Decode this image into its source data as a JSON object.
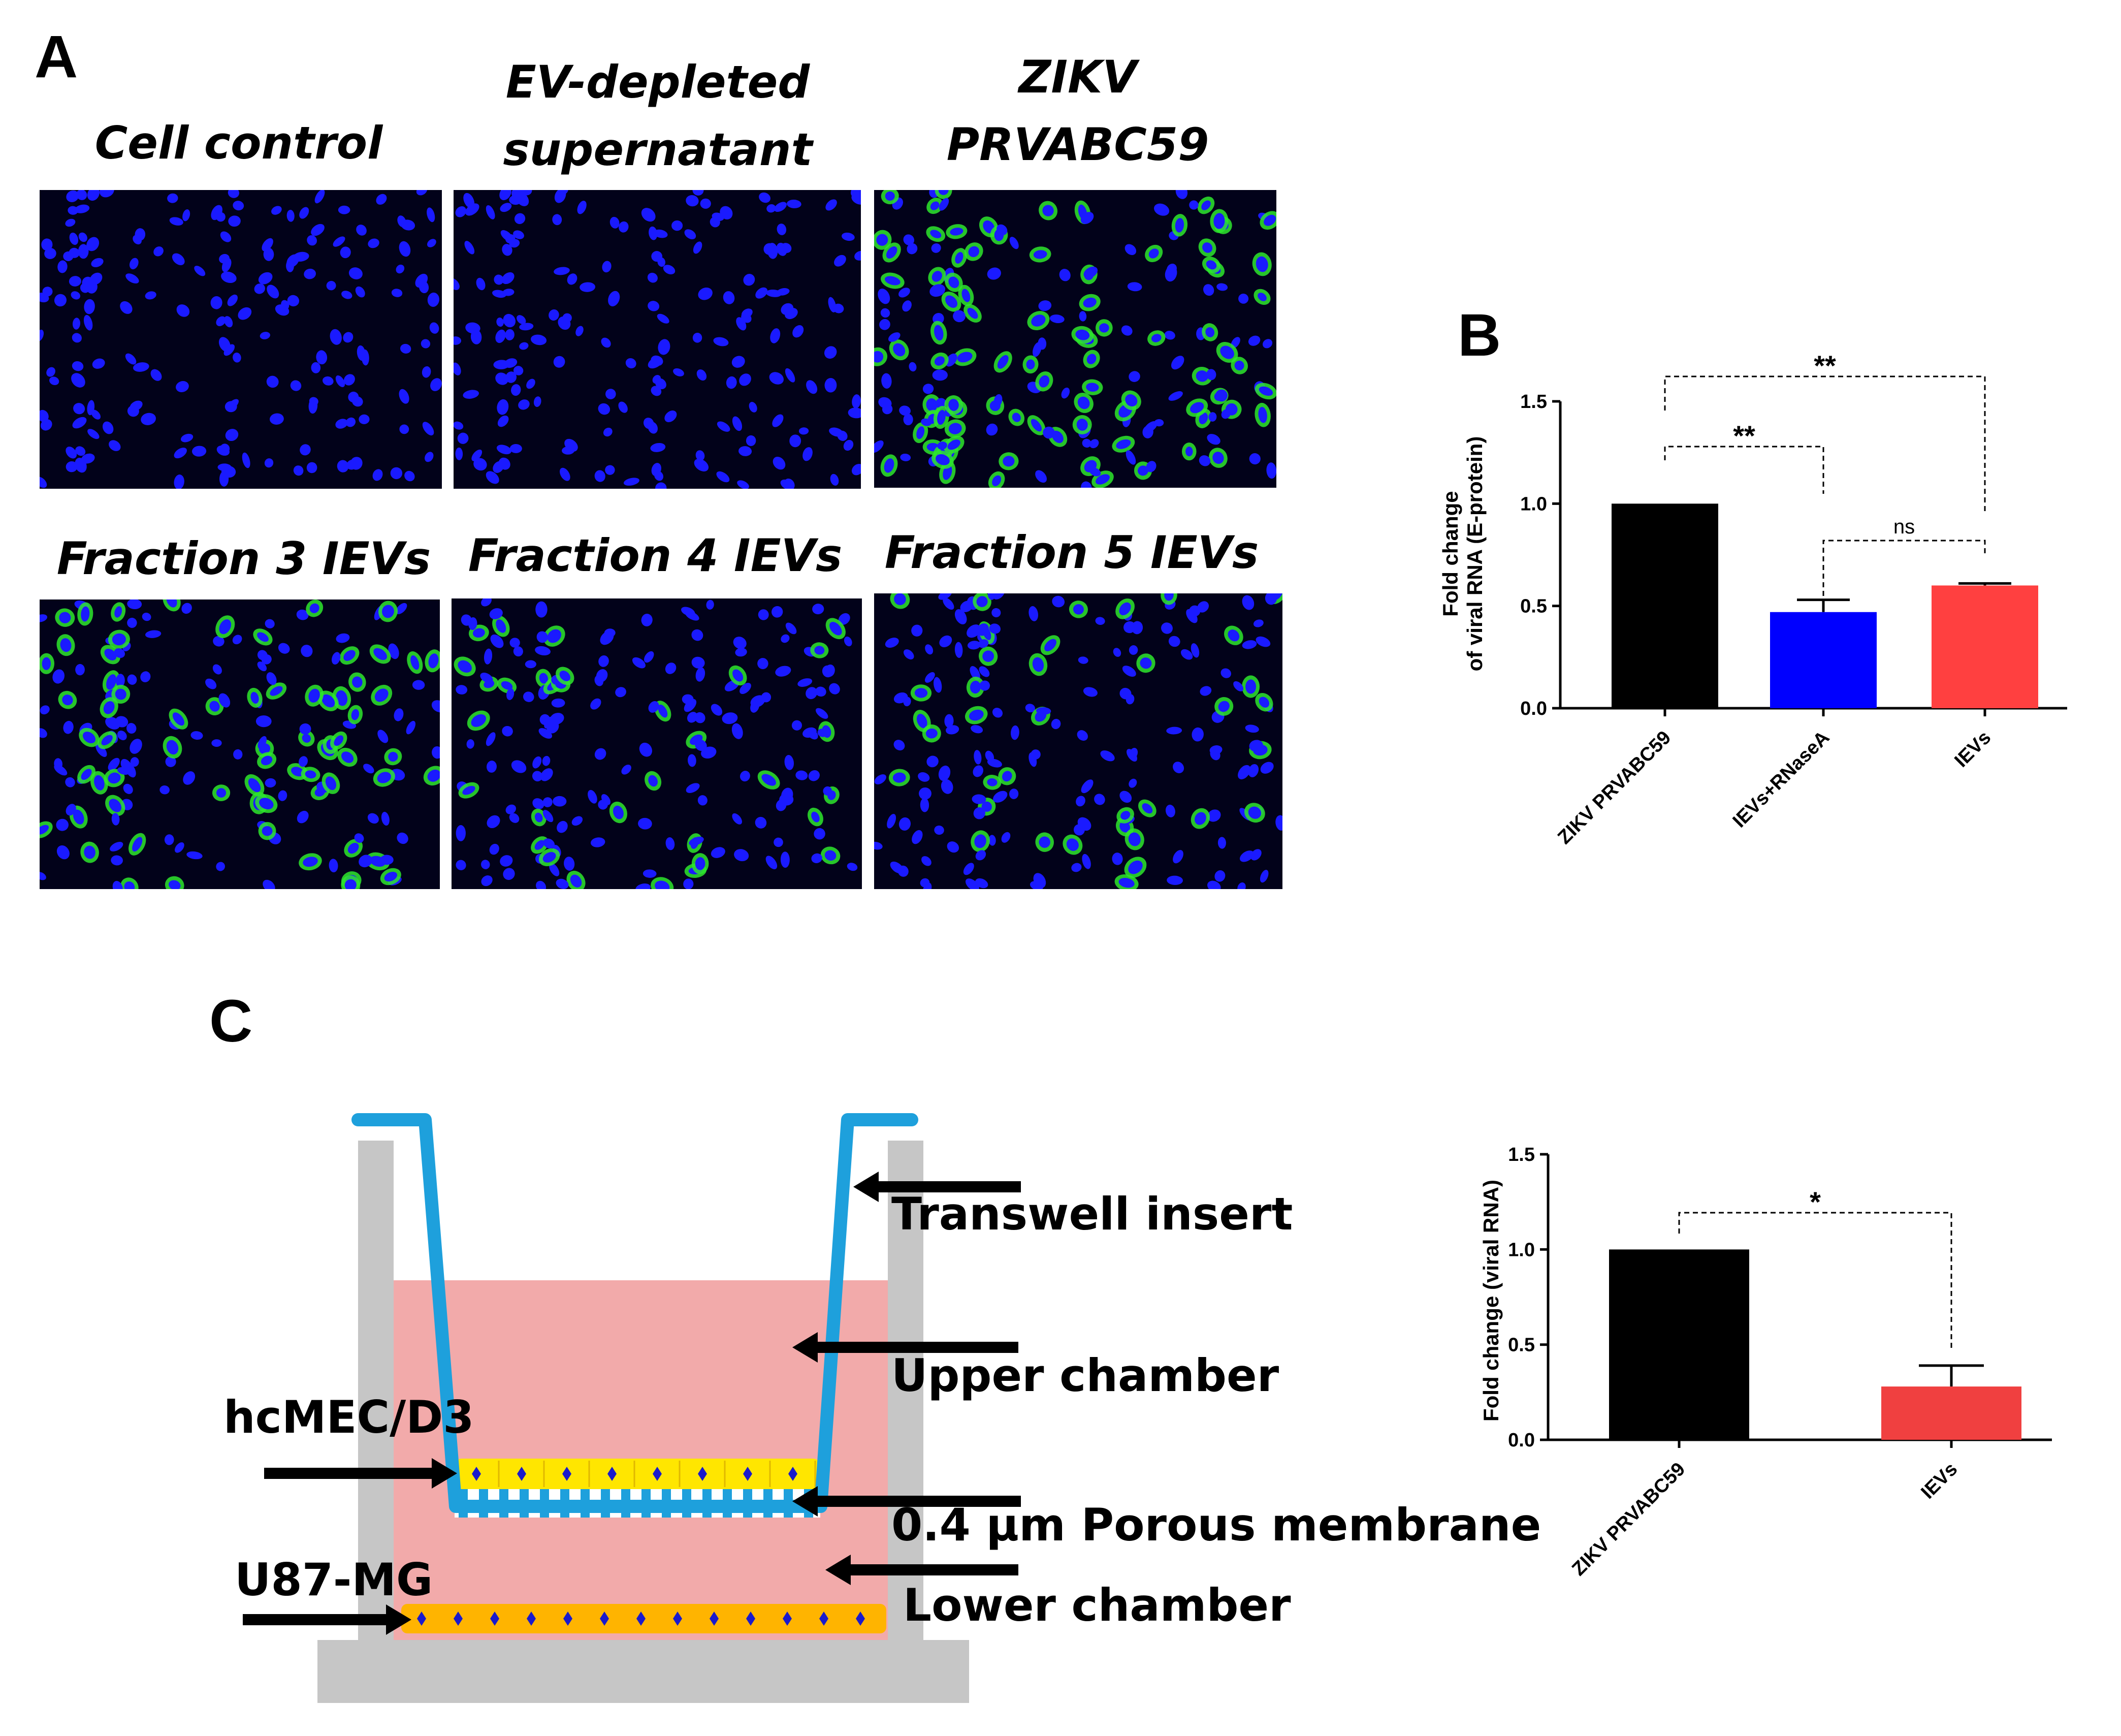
{
  "panel_a": {
    "letter": "A",
    "images": [
      {
        "title_lines": [
          "Cell control"
        ],
        "green": 0
      },
      {
        "title_lines": [
          "EV-depleted",
          "supernatant"
        ],
        "green": 0
      },
      {
        "title_lines": [
          "ZIKV",
          "PRVABC59"
        ],
        "green": 0.55
      },
      {
        "title_lines": [
          "Fraction 3 IEVs"
        ],
        "green": 0.4
      },
      {
        "title_lines": [
          "Fraction 4 IEVs"
        ],
        "green": 0.18
      },
      {
        "title_lines": [
          "Fraction 5 IEVs"
        ],
        "green": 0.2
      }
    ],
    "colors": {
      "background": "#02021a",
      "nucleus": "#1a1aff",
      "green": "#2ee62e"
    }
  },
  "panel_b": {
    "letter": "B"
  },
  "panel_c": {
    "letter": "C",
    "diagram": {
      "labels": {
        "transwell_insert": "Transwell insert",
        "upper_chamber": "Upper chamber",
        "porous_membrane": "0.4 µm Porous membrane",
        "lower_chamber": "Lower chamber",
        "hcmec": "hcMEC/D3",
        "u87": "U87-MG"
      },
      "colors": {
        "wall": "#c6c6c6",
        "medium": "#f2aaaa",
        "insert": "#1ea0dc",
        "cell_yellow": "#ffe600",
        "cell_orange": "#ffb400",
        "nucleus": "#1a1acc"
      }
    }
  },
  "chart_data": [
    {
      "type": "bar",
      "categories": [
        "ZIKV PRVABC59",
        "IEVs+RNaseA",
        "IEVs"
      ],
      "values": [
        1.0,
        0.47,
        0.6
      ],
      "errors": [
        0,
        0.06,
        0.01
      ],
      "colors": [
        "#000000",
        "#0000ff",
        "#ff4040"
      ],
      "ylabel_lines": [
        "Fold change",
        "of viral RNA (E-protein)"
      ],
      "ylim": [
        0,
        1.5
      ],
      "yticks": [
        "0.0",
        "0.5",
        "1.0",
        "1.5"
      ],
      "significance": [
        {
          "from": 0,
          "to": 1,
          "label": "**"
        },
        {
          "from": 0,
          "to": 2,
          "label": "**"
        },
        {
          "from": 1,
          "to": 2,
          "label": "ns"
        }
      ]
    },
    {
      "type": "bar",
      "categories": [
        "ZIKV PRVABC59",
        "IEVs"
      ],
      "values": [
        1.0,
        0.28
      ],
      "errors": [
        0,
        0.11
      ],
      "colors": [
        "#000000",
        "#f04040"
      ],
      "ylabel_lines": [
        "Fold change (viral RNA)"
      ],
      "ylim": [
        0,
        1.5
      ],
      "yticks": [
        "0.0",
        "0.5",
        "1.0",
        "1.5"
      ],
      "significance": [
        {
          "from": 0,
          "to": 1,
          "label": "*"
        }
      ]
    }
  ]
}
